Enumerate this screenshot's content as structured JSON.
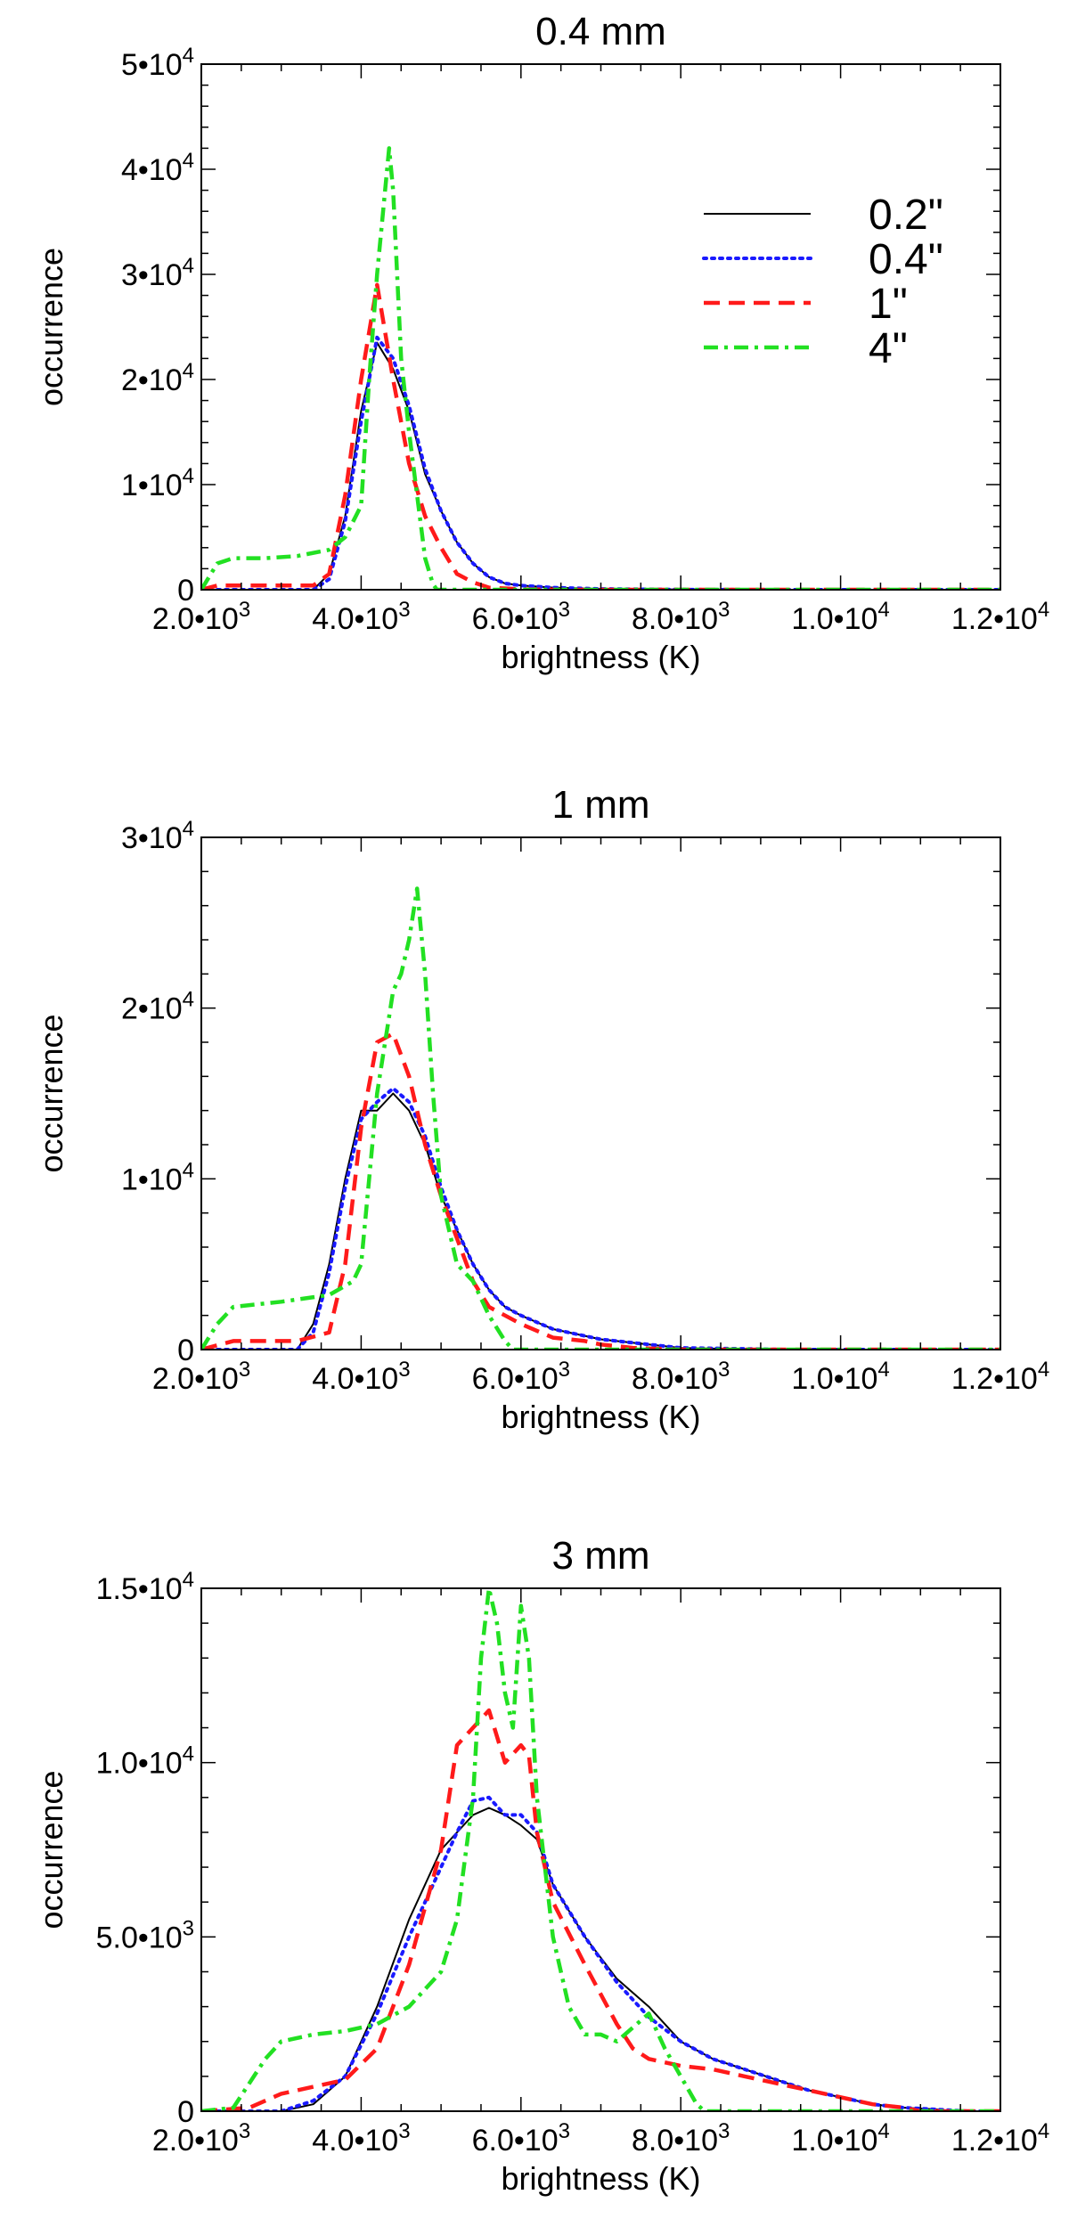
{
  "colors": {
    "0.2\"": "#000000",
    "0.4\"": "#1a1aff",
    "1\"": "#ff1a1a",
    "4\"": "#22e022"
  },
  "legend": {
    "placement": "top-right of first panel",
    "entries": [
      "0.2\"",
      "0.4\"",
      "1\"",
      "4\""
    ]
  },
  "chart_data": [
    {
      "type": "line",
      "title": "0.4 mm",
      "xlabel": "brightness (K)",
      "ylabel": "occurrence",
      "xlim": [
        2000,
        12000
      ],
      "ylim": [
        0,
        50000
      ],
      "xticks": [
        {
          "value": 2000,
          "mantissa": "2.0",
          "exp": "3"
        },
        {
          "value": 4000,
          "mantissa": "4.0",
          "exp": "3"
        },
        {
          "value": 6000,
          "mantissa": "6.0",
          "exp": "3"
        },
        {
          "value": 8000,
          "mantissa": "8.0",
          "exp": "3"
        },
        {
          "value": 10000,
          "mantissa": "1.0",
          "exp": "4"
        },
        {
          "value": 12000,
          "mantissa": "1.2",
          "exp": "4"
        }
      ],
      "yticks": [
        {
          "value": 0,
          "mantissa": "0",
          "exp": ""
        },
        {
          "value": 10000,
          "mantissa": "1",
          "exp": "4"
        },
        {
          "value": 20000,
          "mantissa": "2",
          "exp": "4"
        },
        {
          "value": 30000,
          "mantissa": "3",
          "exp": "4"
        },
        {
          "value": 40000,
          "mantissa": "4",
          "exp": "4"
        },
        {
          "value": 50000,
          "mantissa": "5",
          "exp": "4"
        }
      ],
      "series": [
        {
          "name": "0.2\"",
          "style": "solid",
          "x": [
            2000,
            3400,
            3600,
            3800,
            4000,
            4200,
            4400,
            4600,
            4800,
            5000,
            5200,
            5400,
            5600,
            5800,
            6000,
            6400,
            7000,
            8000,
            9000,
            12000
          ],
          "y": [
            0,
            0,
            1500,
            7000,
            17000,
            23500,
            21000,
            17000,
            11000,
            7500,
            4500,
            2500,
            1200,
            600,
            400,
            200,
            80,
            20,
            0,
            0
          ]
        },
        {
          "name": "0.4\"",
          "style": "dotted",
          "x": [
            2000,
            3400,
            3600,
            3800,
            4000,
            4200,
            4400,
            4600,
            4800,
            5000,
            5200,
            5400,
            5600,
            5800,
            6000,
            6400,
            7000,
            8000,
            9000,
            12000
          ],
          "y": [
            0,
            0,
            1000,
            6500,
            16000,
            24000,
            22000,
            17500,
            11500,
            7500,
            4500,
            2500,
            1200,
            600,
            400,
            200,
            80,
            20,
            0,
            0
          ]
        },
        {
          "name": "1\"",
          "style": "dashed",
          "x": [
            2000,
            2200,
            3400,
            3600,
            3800,
            4000,
            4200,
            4400,
            4600,
            4800,
            5000,
            5200,
            5400,
            5600,
            6000,
            6500,
            7000,
            12000
          ],
          "y": [
            0,
            400,
            400,
            1500,
            9000,
            20000,
            29000,
            20000,
            12000,
            7000,
            4000,
            1500,
            700,
            200,
            50,
            0,
            0,
            0
          ]
        },
        {
          "name": "4\"",
          "style": "dashdot",
          "x": [
            2000,
            2200,
            2400,
            2800,
            3200,
            3600,
            3800,
            4000,
            4100,
            4200,
            4300,
            4350,
            4400,
            4500,
            4600,
            4700,
            4800,
            4900,
            4950,
            12000
          ],
          "y": [
            0,
            2500,
            3000,
            3000,
            3200,
            3800,
            5000,
            8000,
            20000,
            30000,
            38000,
            42000,
            38000,
            22000,
            15000,
            9000,
            3000,
            500,
            0,
            0
          ]
        }
      ]
    },
    {
      "type": "line",
      "title": "1 mm",
      "xlabel": "brightness (K)",
      "ylabel": "occurrence",
      "xlim": [
        2000,
        12000
      ],
      "ylim": [
        0,
        30000
      ],
      "xticks": [
        {
          "value": 2000,
          "mantissa": "2.0",
          "exp": "3"
        },
        {
          "value": 4000,
          "mantissa": "4.0",
          "exp": "3"
        },
        {
          "value": 6000,
          "mantissa": "6.0",
          "exp": "3"
        },
        {
          "value": 8000,
          "mantissa": "8.0",
          "exp": "3"
        },
        {
          "value": 10000,
          "mantissa": "1.0",
          "exp": "4"
        },
        {
          "value": 12000,
          "mantissa": "1.2",
          "exp": "4"
        }
      ],
      "yticks": [
        {
          "value": 0,
          "mantissa": "0",
          "exp": ""
        },
        {
          "value": 10000,
          "mantissa": "1",
          "exp": "4"
        },
        {
          "value": 20000,
          "mantissa": "2",
          "exp": "4"
        },
        {
          "value": 30000,
          "mantissa": "3",
          "exp": "4"
        }
      ],
      "series": [
        {
          "name": "0.2\"",
          "style": "solid",
          "x": [
            2000,
            3200,
            3400,
            3600,
            3800,
            4000,
            4200,
            4400,
            4600,
            4800,
            5000,
            5200,
            5400,
            5600,
            5800,
            6000,
            6400,
            7000,
            8000,
            9000,
            12000
          ],
          "y": [
            0,
            0,
            1500,
            5000,
            10000,
            14000,
            14000,
            15000,
            14000,
            12000,
            9000,
            7000,
            5000,
            3500,
            2500,
            2000,
            1200,
            600,
            100,
            0,
            0
          ]
        },
        {
          "name": "0.4\"",
          "style": "dotted",
          "x": [
            2000,
            3200,
            3400,
            3600,
            3800,
            4000,
            4200,
            4400,
            4600,
            4800,
            5000,
            5200,
            5400,
            5600,
            5800,
            6000,
            6400,
            7000,
            8000,
            9000,
            9300,
            12000
          ],
          "y": [
            0,
            0,
            1000,
            4500,
            9500,
            13500,
            14500,
            15300,
            14500,
            12500,
            9500,
            7000,
            5000,
            3500,
            2500,
            2000,
            1200,
            600,
            100,
            30,
            0,
            0
          ]
        },
        {
          "name": "1\"",
          "style": "dashed",
          "x": [
            2000,
            2400,
            3200,
            3600,
            3800,
            4000,
            4200,
            4400,
            4600,
            4800,
            5000,
            5400,
            5600,
            5800,
            6000,
            6400,
            6800,
            7000,
            7400,
            8000,
            12000
          ],
          "y": [
            0,
            500,
            500,
            1000,
            5000,
            13000,
            18000,
            18500,
            16000,
            12000,
            9000,
            4000,
            2500,
            2000,
            1500,
            700,
            500,
            300,
            100,
            0,
            0
          ]
        },
        {
          "name": "4\"",
          "style": "dashdot",
          "x": [
            2000,
            2200,
            2400,
            3000,
            3600,
            3900,
            4000,
            4100,
            4200,
            4300,
            4400,
            4500,
            4600,
            4700,
            4800,
            4900,
            5000,
            5200,
            5400,
            5600,
            5800,
            5900,
            12000
          ],
          "y": [
            0,
            1500,
            2500,
            2800,
            3200,
            4000,
            5000,
            10000,
            15000,
            18000,
            21000,
            22000,
            24000,
            27000,
            22000,
            15000,
            9000,
            5000,
            4000,
            2000,
            500,
            0,
            0
          ]
        }
      ]
    },
    {
      "type": "line",
      "title": "3 mm",
      "xlabel": "brightness (K)",
      "ylabel": "occurrence",
      "xlim": [
        2000,
        12000
      ],
      "ylim": [
        0,
        15000
      ],
      "xticks": [
        {
          "value": 2000,
          "mantissa": "2.0",
          "exp": "3"
        },
        {
          "value": 4000,
          "mantissa": "4.0",
          "exp": "3"
        },
        {
          "value": 6000,
          "mantissa": "6.0",
          "exp": "3"
        },
        {
          "value": 8000,
          "mantissa": "8.0",
          "exp": "3"
        },
        {
          "value": 10000,
          "mantissa": "1.0",
          "exp": "4"
        },
        {
          "value": 12000,
          "mantissa": "1.2",
          "exp": "4"
        }
      ],
      "yticks": [
        {
          "value": 0,
          "mantissa": "0",
          "exp": ""
        },
        {
          "value": 5000,
          "mantissa": "5.0",
          "exp": "3"
        },
        {
          "value": 10000,
          "mantissa": "1.0",
          "exp": "4"
        },
        {
          "value": 15000,
          "mantissa": "1.5",
          "exp": "4"
        }
      ],
      "series": [
        {
          "name": "0.2\"",
          "style": "solid",
          "x": [
            2000,
            3000,
            3400,
            3800,
            4200,
            4600,
            5000,
            5400,
            5600,
            5800,
            6000,
            6200,
            6400,
            6800,
            7200,
            7600,
            8000,
            8400,
            8800,
            9200,
            9600,
            10000,
            10400,
            10800,
            11200,
            11400,
            12000
          ],
          "y": [
            0,
            0,
            200,
            1000,
            3000,
            5500,
            7500,
            8500,
            8700,
            8500,
            8200,
            7800,
            6500,
            5000,
            3800,
            3000,
            2000,
            1500,
            1200,
            900,
            600,
            400,
            200,
            100,
            50,
            0,
            0
          ]
        },
        {
          "name": "0.4\"",
          "style": "dotted",
          "x": [
            2000,
            3000,
            3400,
            3800,
            4200,
            4600,
            5000,
            5200,
            5400,
            5600,
            5800,
            6000,
            6200,
            6400,
            6800,
            7200,
            7600,
            8000,
            8400,
            8800,
            9200,
            9600,
            10000,
            10400,
            10800,
            11200,
            11600,
            12000
          ],
          "y": [
            0,
            0,
            300,
            1000,
            2800,
            5000,
            7000,
            8000,
            8900,
            9000,
            8500,
            8500,
            8000,
            6500,
            5000,
            3700,
            2700,
            2000,
            1500,
            1200,
            900,
            600,
            400,
            200,
            100,
            50,
            0,
            0
          ]
        },
        {
          "name": "1\"",
          "style": "dashed",
          "x": [
            2000,
            2600,
            3000,
            3400,
            3800,
            4200,
            4600,
            5000,
            5200,
            5400,
            5600,
            5800,
            6000,
            6100,
            6200,
            6400,
            6800,
            7200,
            7400,
            7600,
            8000,
            8400,
            8800,
            9200,
            9600,
            10000,
            10400,
            10800,
            11000,
            12000
          ],
          "y": [
            0,
            100,
            500,
            700,
            900,
            1800,
            4200,
            7500,
            10500,
            11000,
            11500,
            10000,
            10500,
            10200,
            8000,
            6000,
            4200,
            2500,
            1800,
            1500,
            1300,
            1200,
            1000,
            800,
            600,
            400,
            200,
            100,
            0,
            0
          ]
        },
        {
          "name": "4\"",
          "style": "dashdot",
          "x": [
            2000,
            2400,
            2800,
            3000,
            3400,
            3800,
            4200,
            4600,
            5000,
            5200,
            5400,
            5500,
            5600,
            5700,
            5800,
            5900,
            6000,
            6100,
            6200,
            6400,
            6600,
            6800,
            7000,
            7200,
            7400,
            7600,
            7800,
            8000,
            8200,
            8300,
            12000
          ],
          "y": [
            0,
            100,
            1500,
            2000,
            2200,
            2300,
            2500,
            3000,
            4000,
            5500,
            9000,
            13000,
            15000,
            14000,
            12000,
            11000,
            14500,
            13000,
            9000,
            5000,
            3000,
            2200,
            2200,
            2000,
            2400,
            2800,
            1800,
            1000,
            200,
            0,
            0
          ]
        }
      ]
    }
  ]
}
